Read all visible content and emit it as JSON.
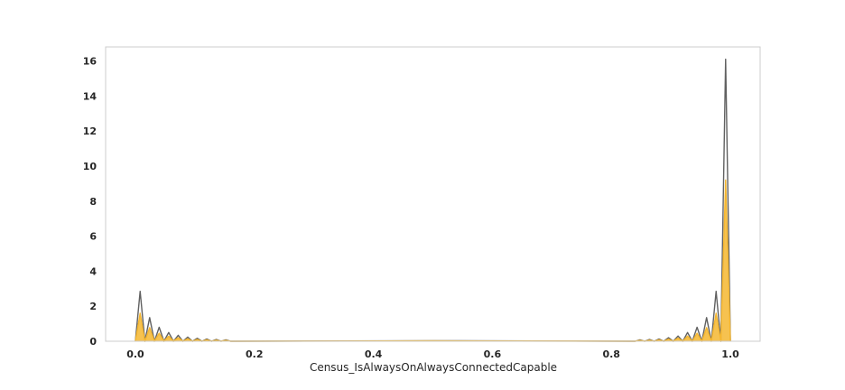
{
  "chart_data": {
    "type": "area",
    "title": "",
    "xlabel": "Census_IsAlwaysOnAlwaysConnectedCapable",
    "ylabel": "",
    "xlim": [
      -0.05,
      1.05
    ],
    "ylim": [
      0,
      16.8
    ],
    "grid": false,
    "legend": "none",
    "x_ticks": [
      0.0,
      0.2,
      0.4,
      0.6,
      0.8,
      1.0
    ],
    "x_tick_labels": [
      "0.0",
      "0.2",
      "0.4",
      "0.6",
      "0.8",
      "1.0"
    ],
    "y_ticks": [
      0,
      2,
      4,
      6,
      8,
      10,
      12,
      14,
      16
    ],
    "y_tick_labels": [
      "0",
      "2",
      "4",
      "6",
      "8",
      "10",
      "12",
      "14",
      "16"
    ],
    "series": [
      {
        "color": "#616161",
        "fill_opacity": 0,
        "x": [
          0.0,
          0.008,
          0.016,
          0.024,
          0.032,
          0.04,
          0.048,
          0.056,
          0.064,
          0.072,
          0.08,
          0.088,
          0.096,
          0.104,
          0.112,
          0.12,
          0.128,
          0.136,
          0.144,
          0.152,
          0.16,
          0.5,
          0.84,
          0.848,
          0.856,
          0.864,
          0.872,
          0.88,
          0.888,
          0.896,
          0.904,
          0.912,
          0.92,
          0.928,
          0.936,
          0.944,
          0.952,
          0.96,
          0.968,
          0.976,
          0.984,
          0.992,
          1.0,
          1.0
        ],
        "y": [
          0.0,
          2.85,
          0.0,
          1.35,
          0.0,
          0.8,
          0.0,
          0.5,
          0.0,
          0.34,
          0.0,
          0.24,
          0.0,
          0.17,
          0.0,
          0.13,
          0.0,
          0.1,
          0.0,
          0.08,
          0.0,
          0.03,
          0.0,
          0.08,
          0.0,
          0.1,
          0.0,
          0.13,
          0.0,
          0.2,
          0.0,
          0.3,
          0.0,
          0.5,
          0.0,
          0.8,
          0.0,
          1.35,
          0.0,
          2.85,
          0.0,
          16.1,
          0.0,
          0.0
        ]
      },
      {
        "color": "#f5b731",
        "fill_opacity": 0.85,
        "x": [
          0.0,
          0.008,
          0.016,
          0.024,
          0.032,
          0.04,
          0.048,
          0.056,
          0.064,
          0.072,
          0.08,
          0.088,
          0.096,
          0.104,
          0.112,
          0.12,
          0.128,
          0.136,
          0.144,
          0.152,
          0.16,
          0.5,
          0.84,
          0.848,
          0.856,
          0.864,
          0.872,
          0.88,
          0.888,
          0.896,
          0.904,
          0.912,
          0.92,
          0.928,
          0.936,
          0.944,
          0.952,
          0.96,
          0.968,
          0.976,
          0.984,
          0.992,
          1.0,
          1.0
        ],
        "y": [
          0.0,
          1.6,
          0.0,
          0.78,
          0.0,
          0.46,
          0.0,
          0.29,
          0.0,
          0.2,
          0.0,
          0.14,
          0.0,
          0.1,
          0.0,
          0.08,
          0.0,
          0.06,
          0.0,
          0.05,
          0.0,
          0.02,
          0.0,
          0.05,
          0.0,
          0.06,
          0.0,
          0.08,
          0.0,
          0.12,
          0.0,
          0.18,
          0.0,
          0.3,
          0.0,
          0.46,
          0.0,
          0.78,
          0.0,
          1.6,
          0.0,
          9.2,
          0.0,
          0.0
        ]
      }
    ]
  }
}
